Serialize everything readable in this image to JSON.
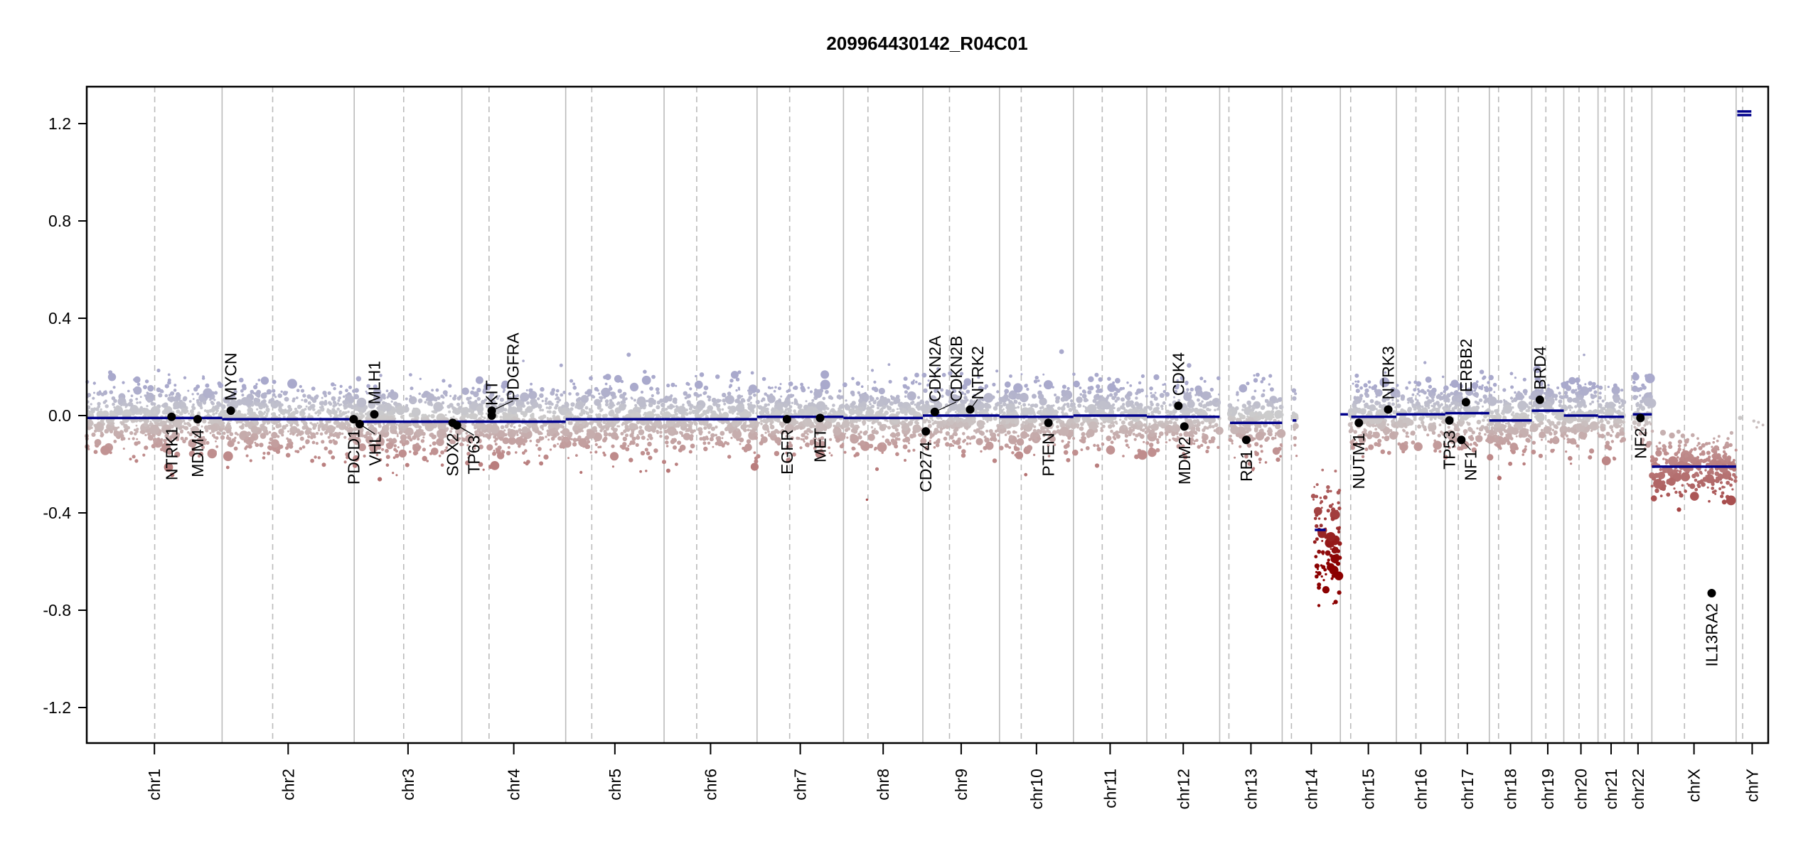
{
  "chart_data": {
    "type": "scatter",
    "title": "209964430142_R04C01",
    "xlabel": "",
    "ylabel": "",
    "ylim": [
      -1.35,
      1.35
    ],
    "yticks": [
      -1.2,
      -0.8,
      -0.4,
      0.0,
      0.4,
      0.8,
      1.2
    ],
    "ytick_labels": [
      "-1.2",
      "-0.8",
      "-0.4",
      "0.0",
      "0.4",
      "0.8",
      "1.2"
    ],
    "chromosomes": [
      {
        "name": "chr1",
        "length_mb": 249,
        "centromere_mb": 125,
        "segment": [
          {
            "start": 0,
            "end": 249,
            "value": -0.01
          }
        ]
      },
      {
        "name": "chr2",
        "length_mb": 243,
        "centromere_mb": 93,
        "segment": [
          {
            "start": 0,
            "end": 243,
            "value": -0.015
          }
        ]
      },
      {
        "name": "chr3",
        "length_mb": 198,
        "centromere_mb": 91,
        "segment": [
          {
            "start": 0,
            "end": 198,
            "value": -0.025
          }
        ]
      },
      {
        "name": "chr4",
        "length_mb": 191,
        "centromere_mb": 50,
        "segment": [
          {
            "start": 0,
            "end": 191,
            "value": -0.025
          }
        ]
      },
      {
        "name": "chr5",
        "length_mb": 181,
        "centromere_mb": 48,
        "segment": [
          {
            "start": 0,
            "end": 181,
            "value": -0.015
          }
        ]
      },
      {
        "name": "chr6",
        "length_mb": 171,
        "centromere_mb": 60,
        "segment": [
          {
            "start": 0,
            "end": 171,
            "value": -0.015
          }
        ]
      },
      {
        "name": "chr7",
        "length_mb": 159,
        "centromere_mb": 60,
        "segment": [
          {
            "start": 0,
            "end": 159,
            "value": -0.005
          }
        ]
      },
      {
        "name": "chr8",
        "length_mb": 146,
        "centromere_mb": 45,
        "segment": [
          {
            "start": 0,
            "end": 146,
            "value": -0.01
          }
        ]
      },
      {
        "name": "chr9",
        "length_mb": 141,
        "centromere_mb": 49,
        "segment": [
          {
            "start": 0,
            "end": 141,
            "value": 0.0
          }
        ]
      },
      {
        "name": "chr10",
        "length_mb": 136,
        "centromere_mb": 40,
        "segment": [
          {
            "start": 0,
            "end": 136,
            "value": -0.005
          }
        ]
      },
      {
        "name": "chr11",
        "length_mb": 135,
        "centromere_mb": 53,
        "segment": [
          {
            "start": 0,
            "end": 135,
            "value": 0.0
          }
        ]
      },
      {
        "name": "chr12",
        "length_mb": 134,
        "centromere_mb": 35,
        "segment": [
          {
            "start": 0,
            "end": 134,
            "value": -0.005
          }
        ]
      },
      {
        "name": "chr13",
        "length_mb": 115,
        "centromere_mb": 17,
        "segment": [
          {
            "start": 19,
            "end": 115,
            "value": -0.03
          }
        ]
      },
      {
        "name": "chr14",
        "length_mb": 107,
        "centromere_mb": 17,
        "segment": [
          {
            "start": 19,
            "end": 26,
            "value": -0.02
          },
          {
            "start": 60,
            "end": 80,
            "value": -0.47
          }
        ]
      },
      {
        "name": "chr15",
        "length_mb": 103,
        "centromere_mb": 19,
        "segment": [
          {
            "start": 0,
            "end": 14,
            "value": 0.005
          },
          {
            "start": 20,
            "end": 103,
            "value": -0.005
          }
        ]
      },
      {
        "name": "chr16",
        "length_mb": 90,
        "centromere_mb": 36,
        "segment": [
          {
            "start": 0,
            "end": 90,
            "value": 0.005
          }
        ]
      },
      {
        "name": "chr17",
        "length_mb": 81,
        "centromere_mb": 24,
        "segment": [
          {
            "start": 0,
            "end": 81,
            "value": 0.01
          }
        ]
      },
      {
        "name": "chr18",
        "length_mb": 78,
        "centromere_mb": 17,
        "segment": [
          {
            "start": 0,
            "end": 78,
            "value": -0.02
          }
        ]
      },
      {
        "name": "chr19",
        "length_mb": 59,
        "centromere_mb": 26,
        "segment": [
          {
            "start": 0,
            "end": 59,
            "value": 0.02
          }
        ]
      },
      {
        "name": "chr20",
        "length_mb": 63,
        "centromere_mb": 28,
        "segment": [
          {
            "start": 0,
            "end": 63,
            "value": 0.0
          }
        ]
      },
      {
        "name": "chr21",
        "length_mb": 48,
        "centromere_mb": 13,
        "segment": [
          {
            "start": 0,
            "end": 48,
            "value": -0.005
          }
        ]
      },
      {
        "name": "chr22",
        "length_mb": 51,
        "centromere_mb": 14,
        "segment": [
          {
            "start": 16,
            "end": 51,
            "value": 0.005
          }
        ]
      },
      {
        "name": "chrX",
        "length_mb": 155,
        "centromere_mb": 60,
        "segment": [
          {
            "start": 0,
            "end": 155,
            "value": -0.21
          }
        ]
      },
      {
        "name": "chrY",
        "length_mb": 59,
        "centromere_mb": 12,
        "segment": [
          {
            "start": 2,
            "end": 28,
            "value": 1.235
          },
          {
            "start": 2,
            "end": 28,
            "value": 1.25
          }
        ]
      }
    ],
    "genes": [
      {
        "name": "NTRK1",
        "chr": "chr1",
        "pos_mb": 156,
        "value": -0.005
      },
      {
        "name": "MDM4",
        "chr": "chr1",
        "pos_mb": 204,
        "value": -0.015
      },
      {
        "name": "MYCN",
        "chr": "chr2",
        "pos_mb": 16,
        "value": 0.02
      },
      {
        "name": "PDCD1",
        "chr": "chr2",
        "pos_mb": 242,
        "value": -0.015
      },
      {
        "name": "VHL",
        "chr": "chr3",
        "pos_mb": 10,
        "value": -0.035
      },
      {
        "name": "MLH1",
        "chr": "chr3",
        "pos_mb": 37,
        "value": 0.005
      },
      {
        "name": "SOX2",
        "chr": "chr3",
        "pos_mb": 181,
        "value": -0.03
      },
      {
        "name": "TP63",
        "chr": "chr3",
        "pos_mb": 189,
        "value": -0.04
      },
      {
        "name": "KIT",
        "chr": "chr4",
        "pos_mb": 55,
        "value": 0.0
      },
      {
        "name": "PDGFRA",
        "chr": "chr4",
        "pos_mb": 55,
        "value": 0.02
      },
      {
        "name": "EGFR",
        "chr": "chr7",
        "pos_mb": 55,
        "value": -0.015
      },
      {
        "name": "MET",
        "chr": "chr7",
        "pos_mb": 116,
        "value": -0.01
      },
      {
        "name": "CD274",
        "chr": "chr9",
        "pos_mb": 5.5,
        "value": -0.065
      },
      {
        "name": "CDKN2A",
        "chr": "chr9",
        "pos_mb": 22,
        "value": 0.015
      },
      {
        "name": "CDKN2B",
        "chr": "chr9",
        "pos_mb": 22,
        "value": 0.015
      },
      {
        "name": "NTRK2",
        "chr": "chr9",
        "pos_mb": 87,
        "value": 0.025
      },
      {
        "name": "PTEN",
        "chr": "chr10",
        "pos_mb": 90,
        "value": -0.03
      },
      {
        "name": "CDK4",
        "chr": "chr12",
        "pos_mb": 58,
        "value": 0.04
      },
      {
        "name": "MDM2",
        "chr": "chr12",
        "pos_mb": 69,
        "value": -0.045
      },
      {
        "name": "RB1",
        "chr": "chr13",
        "pos_mb": 49,
        "value": -0.1
      },
      {
        "name": "NUTM1",
        "chr": "chr15",
        "pos_mb": 34,
        "value": -0.03
      },
      {
        "name": "NTRK3",
        "chr": "chr15",
        "pos_mb": 88,
        "value": 0.025
      },
      {
        "name": "TP53",
        "chr": "chr17",
        "pos_mb": 7.5,
        "value": -0.02
      },
      {
        "name": "NF1",
        "chr": "chr17",
        "pos_mb": 29.5,
        "value": -0.1
      },
      {
        "name": "ERBB2",
        "chr": "chr17",
        "pos_mb": 38,
        "value": 0.055
      },
      {
        "name": "BRD4",
        "chr": "chr19",
        "pos_mb": 15,
        "value": 0.065
      },
      {
        "name": "NF2",
        "chr": "chr22",
        "pos_mb": 30,
        "value": -0.01
      },
      {
        "name": "IL13RA2",
        "chr": "chrX",
        "pos_mb": 110,
        "value": -0.73
      }
    ],
    "colors": {
      "segment": "#00008b",
      "gain": "#a9a9cc",
      "neutral": "#cccccc",
      "loss": "#c09090",
      "strong_loss": "#8b0000",
      "gene": "#000000"
    }
  }
}
